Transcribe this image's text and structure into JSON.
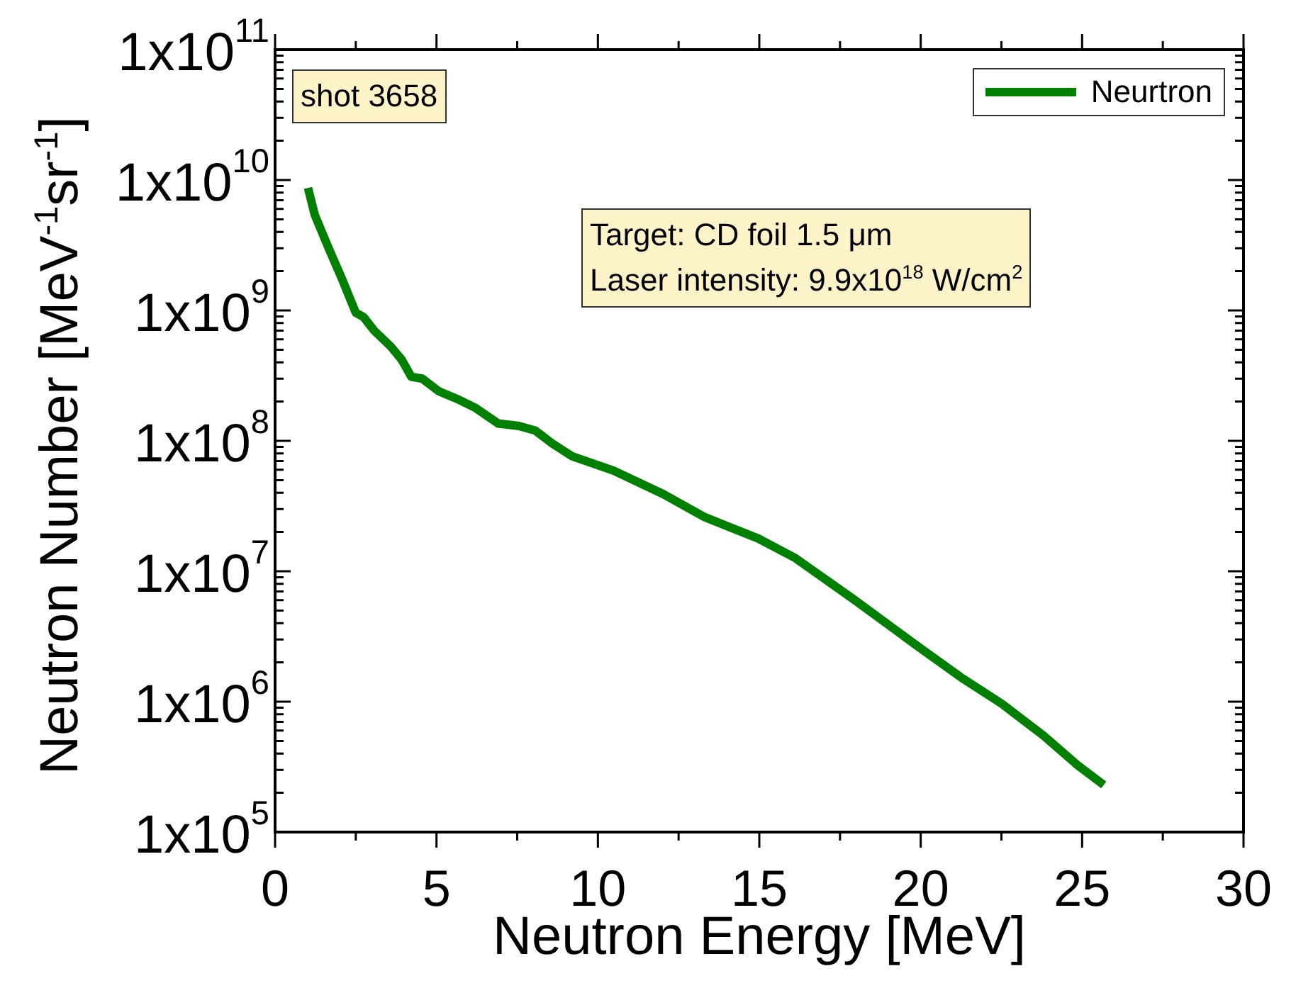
{
  "chart_data": {
    "type": "line",
    "xlabel": "Neutron Energy [MeV]",
    "ylabel": "Neutron Number [MeV$^{-1}$sr$^{-1}$]",
    "log": "y",
    "marker": "none",
    "legend": "top right",
    "xlim": [
      0,
      30
    ],
    "xticks": [
      0,
      {
        "value": 2.5,
        "label": null
      },
      5,
      {
        "value": 7.5,
        "label": null
      },
      10,
      {
        "value": 12.5,
        "label": null
      },
      15,
      {
        "value": 17.5,
        "label": null
      },
      20,
      {
        "value": 22.5,
        "label": null
      },
      25,
      {
        "value": 27.5,
        "label": null
      },
      30
    ],
    "ylim": [
      100000,
      100000000000
    ],
    "yticks": [
      {
        "value": 100000,
        "label": "1x10$^{5}$"
      },
      {
        "value": 200000,
        "label": null
      },
      {
        "value": 300000,
        "label": null
      },
      {
        "value": 400000,
        "label": null
      },
      {
        "value": 500000,
        "label": null
      },
      {
        "value": 600000,
        "label": null
      },
      {
        "value": 700000,
        "label": null
      },
      {
        "value": 800000,
        "label": null
      },
      {
        "value": 900000,
        "label": null
      },
      {
        "value": 1000000,
        "label": "1x10$^{6}$"
      },
      {
        "value": 2000000,
        "label": null
      },
      {
        "value": 3000000,
        "label": null
      },
      {
        "value": 4000000,
        "label": null
      },
      {
        "value": 5000000,
        "label": null
      },
      {
        "value": 6000000,
        "label": null
      },
      {
        "value": 7000000,
        "label": null
      },
      {
        "value": 8000000,
        "label": null
      },
      {
        "value": 9000000,
        "label": null
      },
      {
        "value": 10000000,
        "label": "1x10$^{7}$"
      },
      {
        "value": 20000000,
        "label": null
      },
      {
        "value": 30000000,
        "label": null
      },
      {
        "value": 40000000,
        "label": null
      },
      {
        "value": 50000000,
        "label": null
      },
      {
        "value": 60000000,
        "label": null
      },
      {
        "value": 70000000,
        "label": null
      },
      {
        "value": 80000000,
        "label": null
      },
      {
        "value": 90000000,
        "label": null
      },
      {
        "value": 100000000,
        "label": "1x10$^{8}$"
      },
      {
        "value": 200000000,
        "label": null
      },
      {
        "value": 300000000,
        "label": null
      },
      {
        "value": 400000000,
        "label": null
      },
      {
        "value": 500000000,
        "label": null
      },
      {
        "value": 600000000,
        "label": null
      },
      {
        "value": 700000000,
        "label": null
      },
      {
        "value": 800000000,
        "label": null
      },
      {
        "value": 900000000,
        "label": null
      },
      {
        "value": 1000000000,
        "label": "1x10$^{9}$"
      },
      {
        "value": 2000000000,
        "label": null
      },
      {
        "value": 3000000000,
        "label": null
      },
      {
        "value": 4000000000,
        "label": null
      },
      {
        "value": 5000000000,
        "label": null
      },
      {
        "value": 6000000000,
        "label": null
      },
      {
        "value": 7000000000,
        "label": null
      },
      {
        "value": 8000000000,
        "label": null
      },
      {
        "value": 9000000000,
        "label": null
      },
      {
        "value": 10000000000,
        "label": "1x10$^{10}$"
      },
      {
        "value": 20000000000,
        "label": null
      },
      {
        "value": 30000000000,
        "label": null
      },
      {
        "value": 40000000000,
        "label": null
      },
      {
        "value": 50000000000,
        "label": null
      },
      {
        "value": 60000000000,
        "label": null
      },
      {
        "value": 70000000000,
        "label": null
      },
      {
        "value": 80000000000,
        "label": null
      },
      {
        "value": 90000000000,
        "label": null
      },
      {
        "value": 100000000000,
        "label": "1x10$^{11}$"
      }
    ],
    "annotations": [
      "shot 3658",
      "Target: CD foil 1.5 μm",
      "Laser intensity: 9.9x10$^{18}$ W/cm$^{2}$"
    ],
    "series": [
      {
        "name": "Neurtron",
        "color": "#008000",
        "x": [
          1.02,
          1.23,
          1.66,
          2.05,
          2.5,
          2.74,
          3.07,
          3.58,
          3.92,
          4.22,
          4.56,
          5.07,
          5.63,
          6.19,
          6.91,
          7.55,
          8.06,
          8.57,
          9.21,
          10.49,
          12.03,
          13.31,
          14.97,
          16.12,
          17.92,
          19.96,
          21.24,
          22.52,
          23.8,
          24.83,
          25.67
        ],
        "values": [
          8700000000.0,
          5400000000.0,
          3000000000.0,
          1800000000.0,
          960000000.0,
          890000000.0,
          700000000.0,
          530000000.0,
          420000000.0,
          310000000.0,
          300000000.0,
          240000000.0,
          210000000.0,
          180000000.0,
          136000000.0,
          130000000.0,
          120000000.0,
          96000000.0,
          76000000.0,
          59000000.0,
          39000000.0,
          26000000.0,
          17800000.0,
          12600000.0,
          6100000.0,
          2600000.0,
          1540000.0,
          960000.0,
          550000.0,
          330000.0,
          230000.0
        ]
      }
    ]
  }
}
